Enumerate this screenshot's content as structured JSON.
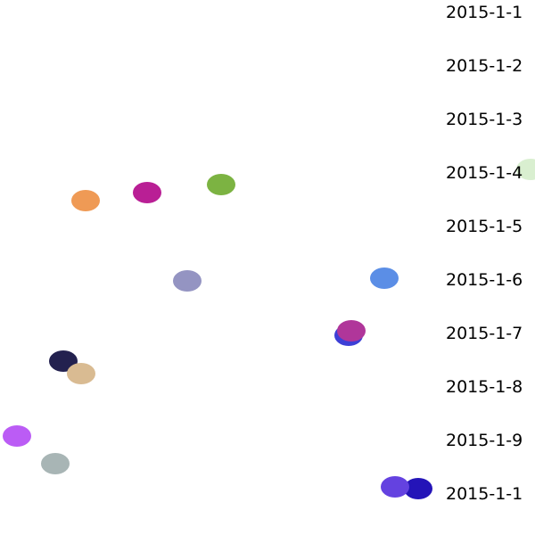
{
  "chart_data": {
    "type": "scatter",
    "title": "",
    "xlabel": "",
    "ylabel": "",
    "grid": false,
    "legend": "none",
    "x_range": [
      0,
      600
    ],
    "y_range": [
      0,
      600
    ],
    "tick_labels": [
      "2015-1-1",
      "2015-1-2",
      "2015-1-3",
      "2015-1-4",
      "2015-1-5",
      "2015-1-6",
      "2015-1-7",
      "2015-1-8",
      "2015-1-9",
      "2015-1-1"
    ],
    "points": [
      {
        "x": 595,
        "y": 190,
        "color": "#d9efd0"
      },
      {
        "x": 96,
        "y": 225,
        "color": "#ef9a55"
      },
      {
        "x": 165,
        "y": 216,
        "color": "#b91f95"
      },
      {
        "x": 248,
        "y": 207,
        "color": "#7cb342"
      },
      {
        "x": 210,
        "y": 315,
        "color": "#9494c2"
      },
      {
        "x": 431,
        "y": 312,
        "color": "#5b8ee6"
      },
      {
        "x": 391,
        "y": 376,
        "color": "#3d3fd6"
      },
      {
        "x": 394,
        "y": 371,
        "color": "#b0369a"
      },
      {
        "x": 71,
        "y": 405,
        "color": "#23214f"
      },
      {
        "x": 91,
        "y": 419,
        "color": "#d9bb92"
      },
      {
        "x": 19,
        "y": 489,
        "color": "#bb5cf5"
      },
      {
        "x": 62,
        "y": 520,
        "color": "#a8b5b5"
      },
      {
        "x": 469,
        "y": 548,
        "color": "#2414b8"
      },
      {
        "x": 443,
        "y": 546,
        "color": "#6442e0"
      }
    ]
  }
}
